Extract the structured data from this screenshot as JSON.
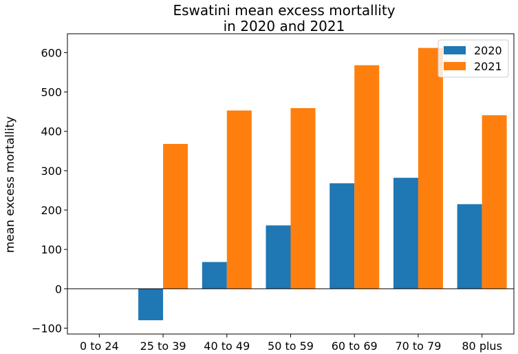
{
  "chart_data": {
    "type": "bar",
    "title": [
      "Eswatini mean excess mortallity",
      "in 2020 and 2021"
    ],
    "xlabel": "",
    "ylabel": "mean excess mortallity",
    "categories": [
      "0 to 24",
      "25 to 39",
      "40 to 49",
      "50 to 59",
      "60 to 69",
      "70 to 79",
      "80 plus"
    ],
    "series": [
      {
        "name": "2020",
        "color": "#1f77b4",
        "values": [
          0,
          -80,
          68,
          161,
          268,
          282,
          215
        ]
      },
      {
        "name": "2021",
        "color": "#ff7f0e",
        "values": [
          0,
          368,
          453,
          459,
          568,
          612,
          441
        ]
      }
    ],
    "ylim": [
      -115,
      648
    ],
    "yticks": [
      -100,
      0,
      100,
      200,
      300,
      400,
      500,
      600
    ],
    "ytick_labels": [
      "−100",
      "0",
      "100",
      "200",
      "300",
      "400",
      "500",
      "600"
    ],
    "grid": false,
    "zero_line": true,
    "legend_position": "top-right"
  }
}
